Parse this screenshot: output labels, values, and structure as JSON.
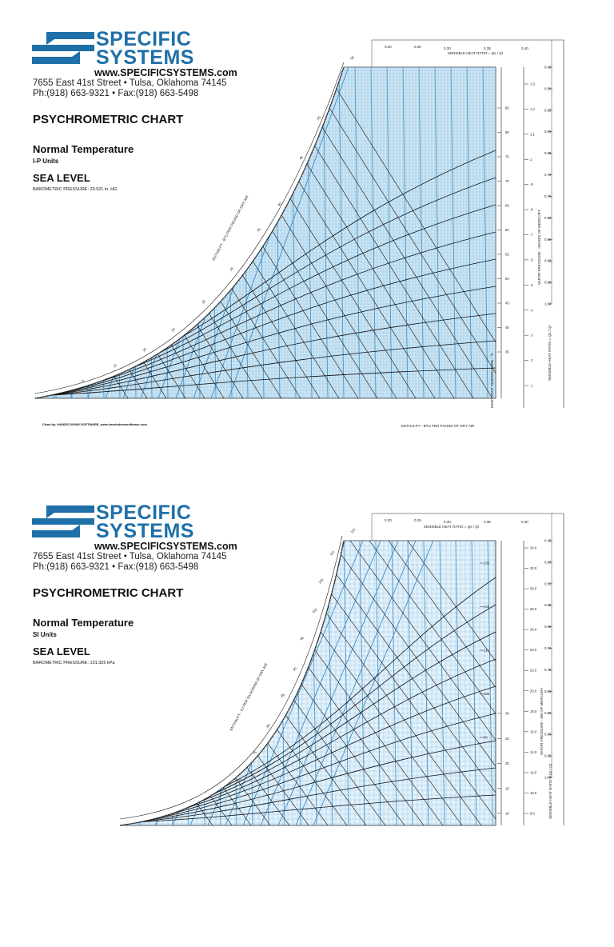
{
  "company": {
    "name_line1": "SPECIFIC",
    "name_line2": "SYSTEMS",
    "url": "www.SPECIFICSYSTEMS.com",
    "address_line": "7655 East 41st Street  •  Tulsa, Oklahoma   74145",
    "phone_line": "Ph:(918) 663-9321  •  Fax:(918) 663-5498",
    "brand_color": "#1f6fa8"
  },
  "sheets": [
    {
      "title": "PSYCHROMETRIC CHART",
      "subtitle": "Normal Temperature",
      "units": "I-P Units",
      "level": "SEA LEVEL",
      "barometric": "BAROMETRIC PRESSURE: 29.921 in. HG",
      "credit": "Chart by: HANDS DOWN SOFTWARE, www.handsdownsoftware.com",
      "shr_label": "SENSIBLE HEAT RATIO = Qs / Qt",
      "shr_top_ticks": [
        "0.20",
        "0.25",
        "0.30",
        "0.35",
        "0.40"
      ],
      "shr_side_ticks": [
        "0.45",
        "0.50",
        "0.55",
        "0.60",
        "0.65",
        "0.70",
        "0.75",
        "0.80",
        "0.85",
        "0.90",
        "0.95",
        "1.00"
      ],
      "enthalpy_label": "ENTHALPY - BTU PER POUND OF DRY AIR",
      "enthalpy_bottom_label": "ENTHALPY - BTU PER POUND OF DRY AIR",
      "vapor_label": "VAPOR PRESSURE - INCHES OF MERCURY",
      "dewpoint_label": "DEW POINT TEMPERATURE - °F",
      "shr_side_label": "SENSIBLE HEAT RATIO = Qs / Qt",
      "vapor_ticks": [
        "1.3",
        "1.2",
        "1.1",
        "1",
        ".9",
        ".8",
        ".7",
        ".6",
        ".5",
        ".4",
        ".3",
        ".2",
        ".1"
      ],
      "dewpoint_ticks": [
        "85",
        "80",
        "75",
        "70",
        "65",
        "60",
        "55",
        "50",
        "45",
        "40",
        "35"
      ],
      "enthalpy_ticks": [
        "55",
        "50",
        "45",
        "40",
        "35",
        "30",
        "25",
        "20",
        "15",
        "10",
        "5"
      ]
    },
    {
      "title": "PSYCHROMETRIC CHART",
      "subtitle": "Normal Temperature",
      "units": "SI Units",
      "level": "SEA LEVEL",
      "barometric": "BAROMETRIC PRESSURE: 101.325 kPa",
      "shr_label": "SENSIBLE HEAT RATIO = Qs / Qt",
      "shr_top_ticks": [
        "0.20",
        "0.25",
        "0.30",
        "0.35",
        "0.40"
      ],
      "shr_side_ticks": [
        "0.45",
        "0.50",
        "0.55",
        "0.60",
        "0.65",
        "0.70",
        "0.75",
        "0.80",
        "0.85",
        "0.90",
        "0.95",
        "1.00"
      ],
      "enthalpy_label": "ENTHALPY - KJ PER KILOGRAM OF DRY AIR",
      "vapor_label": "VAPOR PRESSURE - MM OF MERCURY",
      "shr_side_label": "SENSIBLE HEAT RATIO = Qs / Qt",
      "vapor_ticks": [
        "34.0",
        "32.0",
        "30.0",
        "28.0",
        "26.0",
        "24.0",
        "22.0",
        "20.0",
        "18.0",
        "16.0",
        "14.0",
        "12.0",
        "10.0",
        "8.0"
      ],
      "dewpoint_ticks": [
        "30",
        "25",
        "20",
        "15",
        "10"
      ],
      "enthalpy_ticks": [
        "115",
        "110",
        "105",
        "100",
        "95",
        "90",
        "85",
        "80",
        "75",
        "70"
      ],
      "side_enthalpy_ticks": [
        "135",
        "125",
        "115",
        "105",
        "90"
      ]
    }
  ]
}
